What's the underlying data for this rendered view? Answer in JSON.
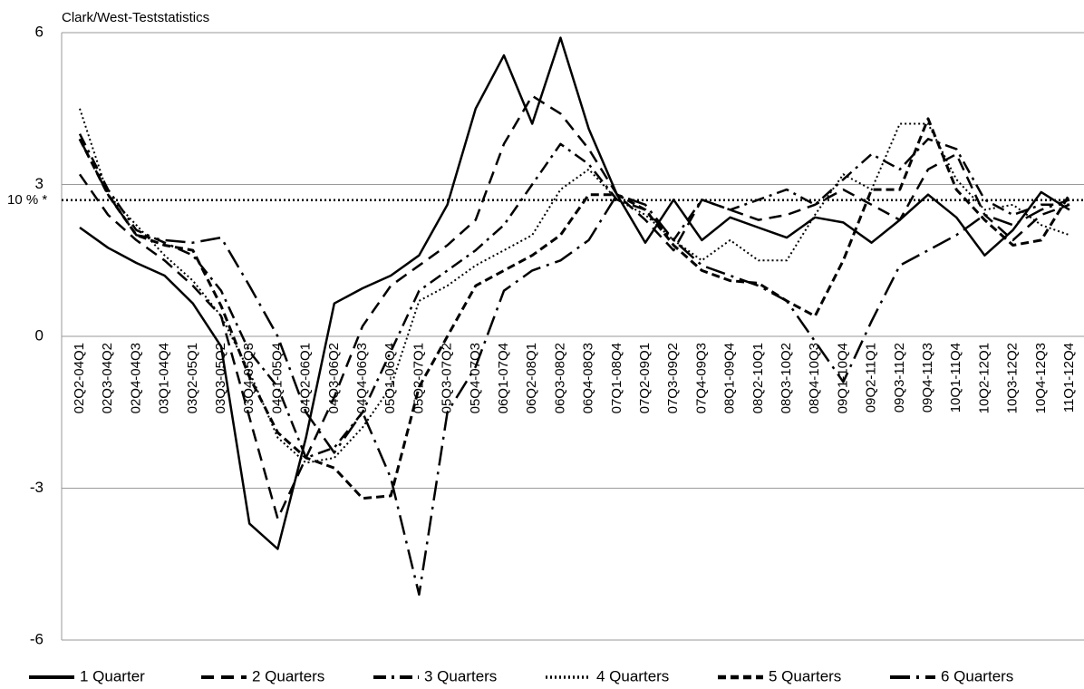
{
  "chart_data": {
    "type": "line",
    "title": "Clark/West-Teststatistics",
    "categories": [
      "02Q2-04Q1",
      "02Q3-04Q2",
      "02Q4-04Q3",
      "03Q1-04Q4",
      "03Q2-05Q1",
      "03Q3-05Q2",
      "03Q4-05Q3",
      "04Q1-05Q4",
      "04Q2-06Q1",
      "04Q3-06Q2",
      "04Q4-06Q3",
      "05Q1-06Q4",
      "05Q2-07Q1",
      "05Q3-07Q2",
      "05Q4-07Q3",
      "06Q1-07Q4",
      "06Q2-08Q1",
      "06Q3-08Q2",
      "06Q4-08Q3",
      "07Q1-08Q4",
      "07Q2-09Q1",
      "07Q3-09Q2",
      "07Q4-09Q3",
      "08Q1-09Q4",
      "08Q2-10Q1",
      "08Q3-10Q2",
      "08Q4-10Q3",
      "09Q1-10Q4",
      "09Q2-11Q1",
      "09Q3-11Q2",
      "09Q4-11Q3",
      "10Q1-11Q4",
      "10Q2-12Q1",
      "10Q3-12Q2",
      "10Q4-12Q3",
      "11Q1-12Q4"
    ],
    "series": [
      {
        "name": "1 Quarter",
        "color": "#000000",
        "values": [
          2.15,
          1.75,
          1.45,
          1.2,
          0.65,
          -0.2,
          -3.7,
          -4.2,
          -2.0,
          0.65,
          0.95,
          1.2,
          1.6,
          2.6,
          4.5,
          5.55,
          4.2,
          5.9,
          4.1,
          2.8,
          1.85,
          2.7,
          1.9,
          2.35,
          2.15,
          1.95,
          2.35,
          2.25,
          1.85,
          2.3,
          2.8,
          2.35,
          1.6,
          2.1,
          2.85,
          2.5
        ]
      },
      {
        "name": "2 Quarters",
        "color": "#000000",
        "values": [
          3.2,
          2.4,
          1.9,
          1.5,
          1.0,
          0.4,
          -1.6,
          -3.6,
          -2.4,
          -1.2,
          0.2,
          1.0,
          1.4,
          1.8,
          2.3,
          3.8,
          4.75,
          4.4,
          3.7,
          2.8,
          2.3,
          1.7,
          2.7,
          2.5,
          2.3,
          2.4,
          2.6,
          2.9,
          2.6,
          2.3,
          3.3,
          3.6,
          2.4,
          1.9,
          2.4,
          2.6
        ]
      },
      {
        "name": "3 Quarters",
        "color": "#000000",
        "values": [
          4.0,
          2.9,
          2.1,
          1.85,
          1.6,
          0.9,
          -0.3,
          -1.0,
          -2.4,
          -2.2,
          -1.5,
          -0.3,
          0.9,
          1.3,
          1.7,
          2.2,
          3.0,
          3.8,
          3.4,
          2.7,
          2.5,
          1.9,
          2.7,
          2.5,
          2.7,
          2.9,
          2.6,
          3.1,
          3.6,
          3.3,
          3.9,
          3.7,
          2.7,
          2.4,
          2.6,
          2.6
        ]
      },
      {
        "name": "4 Quarters",
        "color": "#000000",
        "values": [
          4.5,
          2.8,
          2.2,
          1.6,
          1.1,
          0.4,
          -0.7,
          -2.0,
          -2.5,
          -2.4,
          -1.8,
          -1.0,
          0.7,
          1.0,
          1.4,
          1.7,
          2.0,
          2.9,
          3.3,
          2.7,
          2.4,
          1.9,
          1.5,
          1.9,
          1.5,
          1.5,
          2.4,
          3.2,
          2.9,
          4.2,
          4.2,
          3.1,
          2.5,
          2.6,
          2.2,
          2.0
        ]
      },
      {
        "name": "5 Quarters",
        "color": "#000000",
        "values": [
          3.9,
          2.8,
          2.0,
          1.8,
          1.7,
          0.6,
          -0.8,
          -1.9,
          -2.4,
          -2.6,
          -3.2,
          -3.15,
          -1.0,
          0.0,
          1.0,
          1.3,
          1.6,
          2.0,
          2.8,
          2.8,
          2.5,
          1.8,
          1.3,
          1.1,
          1.05,
          0.7,
          0.4,
          1.5,
          2.9,
          2.9,
          4.3,
          2.9,
          2.3,
          1.8,
          1.9,
          2.8
        ]
      },
      {
        "name": "6 Quarters",
        "color": "#000000",
        "values": [
          3.9,
          2.8,
          2.0,
          1.9,
          1.85,
          1.95,
          1.0,
          0.0,
          -1.5,
          -2.3,
          -1.5,
          -2.8,
          -5.1,
          -1.5,
          -0.6,
          0.9,
          1.3,
          1.5,
          1.9,
          2.8,
          2.6,
          1.9,
          1.4,
          1.2,
          1.0,
          0.7,
          -0.1,
          -0.9,
          0.3,
          1.4,
          1.7,
          2.0,
          2.4,
          2.2,
          2.5,
          2.7
        ]
      }
    ],
    "ylim": [
      -6,
      6
    ],
    "yticks": [
      -6,
      -3,
      0,
      3,
      6
    ],
    "threshold": {
      "value": 2.69,
      "label": "10 % *"
    },
    "grid": true
  }
}
